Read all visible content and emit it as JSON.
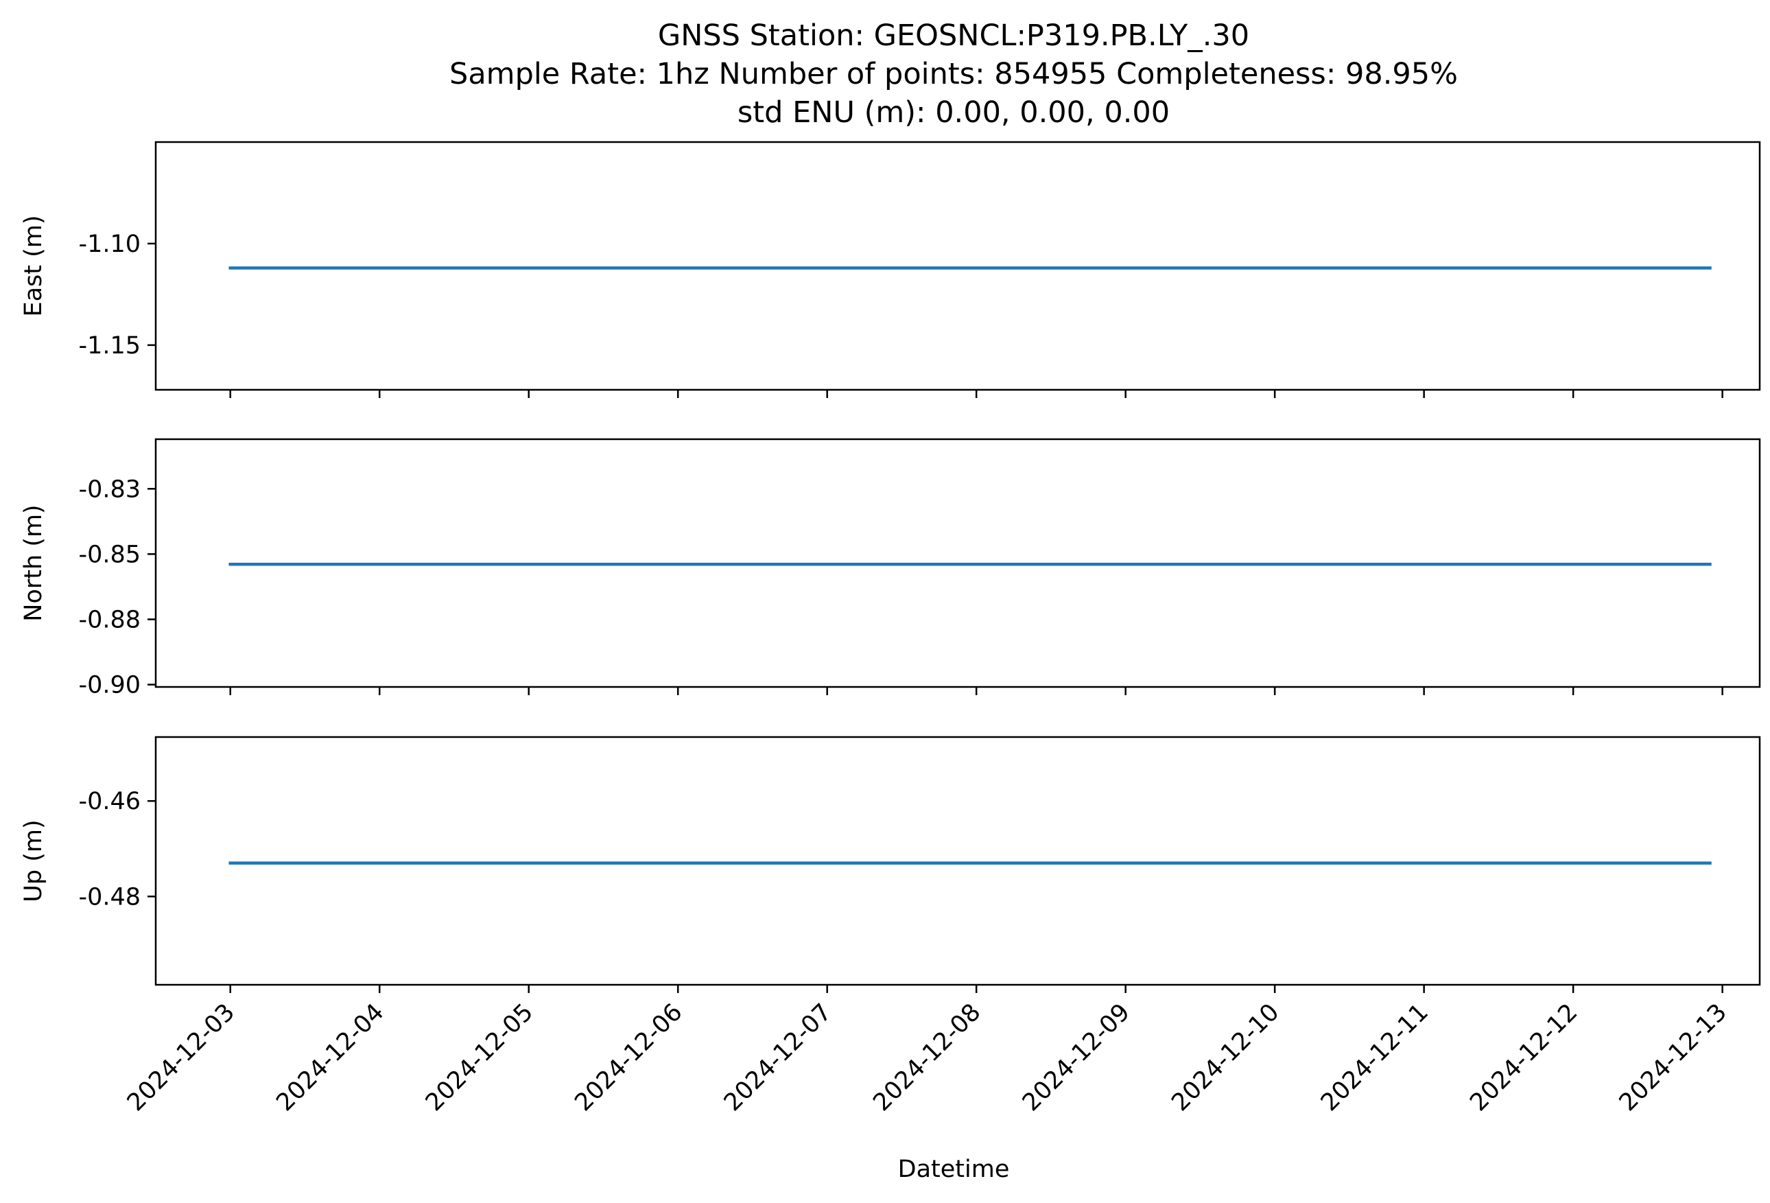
{
  "figure": {
    "title_lines": [
      "GNSS Station: GEOSNCL:P319.PB.LY_.30",
      "Sample Rate: 1hz   Number of points: 854955    Completeness:  98.95%",
      "std ENU (m):  0.00, 0.00, 0.00"
    ],
    "xlabel": "Datetime",
    "line_color": "#1f77b4"
  },
  "chart_data": [
    {
      "type": "line",
      "ylabel": "East (m)",
      "x_ticks": [
        "2024-12-03",
        "2024-12-04",
        "2024-12-05",
        "2024-12-06",
        "2024-12-07",
        "2024-12-08",
        "2024-12-09",
        "2024-12-10",
        "2024-12-11",
        "2024-12-12",
        "2024-12-13"
      ],
      "xlim": [
        "2024-12-02 12:00",
        "2024-12-13 06:00"
      ],
      "y_ticks": [
        "-1.10",
        "-1.15"
      ],
      "ylim": [
        -1.172,
        -1.05
      ],
      "series": [
        {
          "x": [
            "2024-12-03 00:00",
            "2024-12-12 22:00"
          ],
          "y": [
            -1.112,
            -1.112
          ]
        }
      ],
      "grid": false
    },
    {
      "type": "line",
      "ylabel": "North (m)",
      "x_ticks": [
        "2024-12-03",
        "2024-12-04",
        "2024-12-05",
        "2024-12-06",
        "2024-12-07",
        "2024-12-08",
        "2024-12-09",
        "2024-12-10",
        "2024-12-11",
        "2024-12-12",
        "2024-12-13"
      ],
      "xlim": [
        "2024-12-02 12:00",
        "2024-12-13 06:00"
      ],
      "y_ticks": [
        "-0.83",
        "-0.85",
        "-0.88",
        "-0.90"
      ],
      "y_tick_values": [
        -0.83,
        -0.8525,
        -0.875,
        -0.8975
      ],
      "ylim": [
        -0.8983,
        -0.8129
      ],
      "series": [
        {
          "x": [
            "2024-12-03 00:00",
            "2024-12-12 22:00"
          ],
          "y": [
            -0.856,
            -0.856
          ]
        }
      ],
      "grid": false
    },
    {
      "type": "line",
      "ylabel": "Up (m)",
      "x_ticks": [
        "2024-12-03",
        "2024-12-04",
        "2024-12-05",
        "2024-12-06",
        "2024-12-07",
        "2024-12-08",
        "2024-12-09",
        "2024-12-10",
        "2024-12-11",
        "2024-12-12",
        "2024-12-13"
      ],
      "xlim": [
        "2024-12-02 12:00",
        "2024-12-13 06:00"
      ],
      "y_ticks": [
        "-0.46",
        "-0.48"
      ],
      "y_tick_values": [
        -0.46,
        -0.48
      ],
      "ylim": [
        -0.4985,
        -0.4466
      ],
      "series": [
        {
          "x": [
            "2024-12-03 00:00",
            "2024-12-12 22:00"
          ],
          "y": [
            -0.473,
            -0.473
          ]
        }
      ],
      "grid": false
    }
  ]
}
